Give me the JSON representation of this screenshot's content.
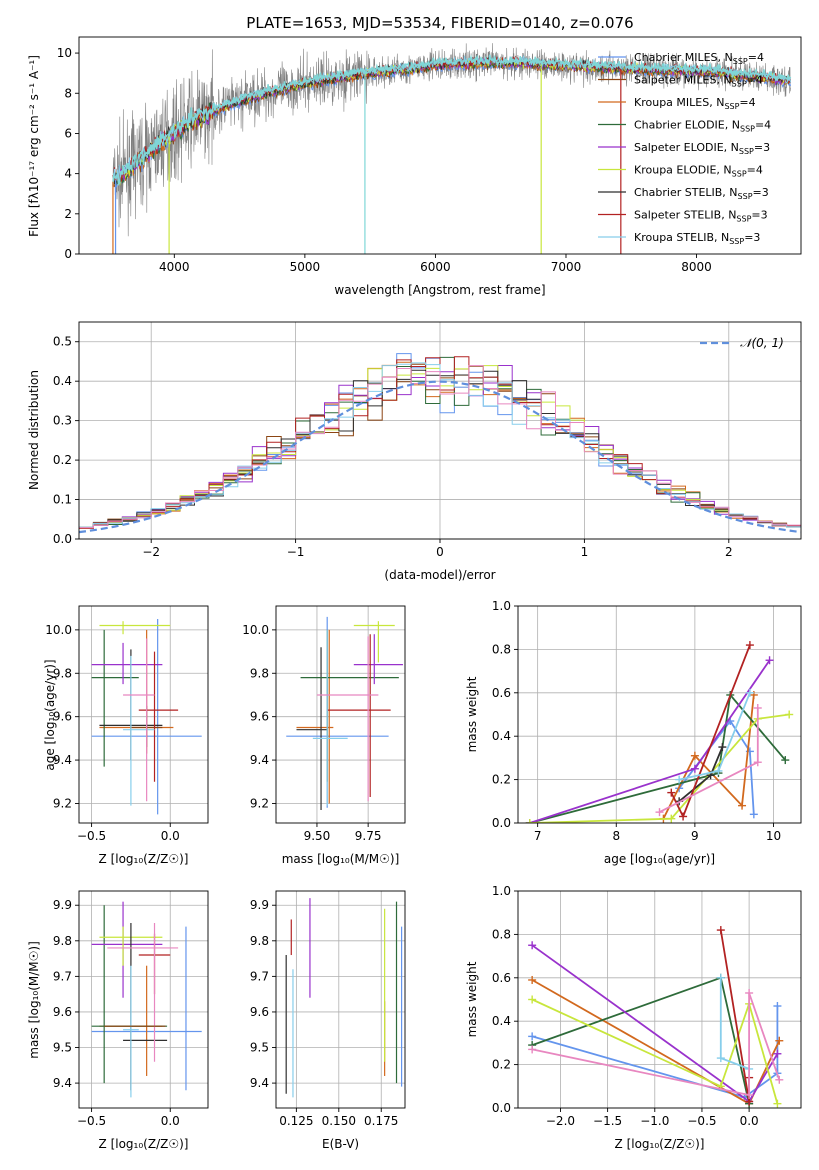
{
  "colors": {
    "chabrier_miles": "#6495ed",
    "salpeter_miles": "#8b4513",
    "kroupa_miles": "#d2691e",
    "chabrier_elodie": "#2e6b3a",
    "salpeter_elodie": "#9932cc",
    "kroupa_elodie": "#c8e63c",
    "chabrier_stelib": "#2f2f2f",
    "salpeter_stelib": "#b22222",
    "kroupa_stelib": "#87ceeb",
    "spectrum_data": "#808080",
    "fit_main": "#7fd6d6",
    "pink": "#e887c0",
    "gauss": "#5f8fdc"
  },
  "chart_data": [
    {
      "id": "spectrum",
      "type": "line",
      "title": "PLATE=1653, MJD=53534, FIBERID=0140, z=0.076",
      "xlabel": "wavelength [Angstrom, rest frame]",
      "ylabel": "Flux [fλ10⁻¹⁷ erg cm⁻² s⁻¹ A⁻¹]",
      "xlim": [
        3270,
        8800
      ],
      "ylim": [
        0,
        10.8
      ],
      "xticks": [
        "4000",
        "5000",
        "6000",
        "7000",
        "8000"
      ],
      "yticks": [
        "0",
        "2",
        "4",
        "6",
        "8",
        "10"
      ],
      "legend_position": "right",
      "legend": [
        {
          "main": "Chabrier MILES, N",
          "sub": "SSP",
          "tail": "=4",
          "color": "#6495ed"
        },
        {
          "main": "Salpeter MILES, N",
          "sub": "SSP",
          "tail": "=4",
          "color": "#8b4513"
        },
        {
          "main": "Kroupa MILES, N",
          "sub": "SSP",
          "tail": "=4",
          "color": "#d2691e"
        },
        {
          "main": "Chabrier ELODIE, N",
          "sub": "SSP",
          "tail": "=4",
          "color": "#2e6b3a"
        },
        {
          "main": "Salpeter ELODIE, N",
          "sub": "SSP",
          "tail": "=3",
          "color": "#9932cc"
        },
        {
          "main": "Kroupa ELODIE, N",
          "sub": "SSP",
          "tail": "=4",
          "color": "#c8e63c"
        },
        {
          "main": "Chabrier STELIB, N",
          "sub": "SSP",
          "tail": "=3",
          "color": "#2f2f2f"
        },
        {
          "main": "Salpeter STELIB, N",
          "sub": "SSP",
          "tail": "=3",
          "color": "#b22222"
        },
        {
          "main": "Kroupa STELIB, N",
          "sub": "SSP",
          "tail": "=3",
          "color": "#87ceeb"
        }
      ],
      "continuum": {
        "x": [
          3530,
          3600,
          3700,
          3800,
          3900,
          4000,
          4100,
          4200,
          4300,
          4500,
          4700,
          4900,
          5100,
          5300,
          5500,
          5800,
          6000,
          6300,
          6600,
          6900,
          7200,
          7500,
          7800,
          8100,
          8300,
          8500,
          8700
        ],
        "y": [
          3.6,
          3.9,
          4.5,
          5.0,
          5.6,
          6.0,
          6.5,
          6.8,
          7.1,
          7.6,
          8.0,
          8.3,
          8.6,
          8.8,
          9.0,
          9.2,
          9.4,
          9.5,
          9.5,
          9.4,
          9.3,
          9.2,
          9.1,
          9.1,
          8.9,
          8.8,
          8.6
        ]
      }
    },
    {
      "id": "residuals",
      "type": "step",
      "xlabel": "(data-model)/error",
      "ylabel": "Normed distribution",
      "xlim": [
        -2.5,
        2.5
      ],
      "ylim": [
        0,
        0.55
      ],
      "xticks": [
        "−2",
        "−1",
        "0",
        "1",
        "2"
      ],
      "yticks": [
        "0.0",
        "0.1",
        "0.2",
        "0.3",
        "0.4",
        "0.5"
      ],
      "legend": {
        "label": "𝒩(0, 1)",
        "position": "upper right"
      },
      "bin_edges_from": -2.5,
      "bin_width": 0.1
    },
    {
      "id": "age-vs-Z",
      "type": "errorbar",
      "xlabel": "Z [log₁₀(Z/Z☉)]",
      "ylabel": "age  [log₁₀(age/yr)]",
      "xlim": [
        -0.58,
        0.24
      ],
      "ylim": [
        9.11,
        10.11
      ],
      "xticks": [
        "−0.5",
        "0.0"
      ],
      "yticks": [
        "9.2",
        "9.4",
        "9.6",
        "9.8",
        "10.0"
      ],
      "points": [
        {
          "x": -0.08,
          "xlo": -0.5,
          "xhi": 0.2,
          "y": 9.51,
          "ylo": 9.15,
          "yhi": 10.05,
          "color": "#6495ed"
        },
        {
          "x": -0.15,
          "xlo": -0.45,
          "xhi": 0.02,
          "y": 9.55,
          "ylo": 9.43,
          "yhi": 10.0,
          "color": "#d2691e"
        },
        {
          "x": -0.15,
          "xlo": -0.25,
          "xhi": -0.05,
          "y": 9.55,
          "ylo": 9.46,
          "yhi": 9.65,
          "color": "#8b4513"
        },
        {
          "x": -0.42,
          "xlo": -0.5,
          "xhi": -0.2,
          "y": 9.78,
          "ylo": 9.37,
          "yhi": 10.0,
          "color": "#2e6b3a"
        },
        {
          "x": -0.3,
          "xlo": -0.5,
          "xhi": -0.05,
          "y": 9.84,
          "ylo": 9.75,
          "yhi": 9.94,
          "color": "#9932cc"
        },
        {
          "x": -0.3,
          "xlo": -0.45,
          "xhi": 0.0,
          "y": 10.02,
          "ylo": 9.98,
          "yhi": 10.04,
          "color": "#c8e63c"
        },
        {
          "x": -0.25,
          "xlo": -0.45,
          "xhi": -0.05,
          "y": 9.56,
          "ylo": 9.4,
          "yhi": 9.91,
          "color": "#2f2f2f"
        },
        {
          "x": -0.1,
          "xlo": -0.2,
          "xhi": 0.05,
          "y": 9.63,
          "ylo": 9.3,
          "yhi": 9.9,
          "color": "#b22222"
        },
        {
          "x": -0.25,
          "xlo": -0.3,
          "xhi": -0.1,
          "y": 9.54,
          "ylo": 9.19,
          "yhi": 9.88,
          "color": "#87ceeb"
        },
        {
          "x": -0.15,
          "xlo": -0.3,
          "xhi": -0.1,
          "y": 9.7,
          "ylo": 9.21,
          "yhi": 9.96,
          "color": "#e887c0"
        }
      ]
    },
    {
      "id": "age-vs-mass",
      "type": "errorbar",
      "xlabel": "mass [log₁₀(M/M☉)]",
      "ylabel": "",
      "xlim": [
        9.3,
        9.93
      ],
      "ylim": [
        9.11,
        10.11
      ],
      "xticks": [
        "9.50",
        "9.75"
      ],
      "yticks": [
        "9.2",
        "9.4",
        "9.6",
        "9.8",
        "10.0"
      ],
      "points": [
        {
          "x": 9.55,
          "xlo": 9.35,
          "xhi": 9.85,
          "y": 9.51,
          "ylo": 9.18,
          "yhi": 10.06,
          "color": "#6495ed"
        },
        {
          "x": 9.56,
          "xlo": 9.4,
          "xhi": 9.58,
          "y": 9.55,
          "ylo": 9.2,
          "yhi": 10.0,
          "color": "#d2691e"
        },
        {
          "x": 9.52,
          "xlo": 9.4,
          "xhi": 9.55,
          "y": 9.54,
          "ylo": 9.17,
          "yhi": 9.92,
          "color": "#2f2f2f"
        },
        {
          "x": 9.55,
          "xlo": 9.42,
          "xhi": 9.9,
          "y": 9.78,
          "ylo": 9.3,
          "yhi": 10.0,
          "color": "#2e6b3a"
        },
        {
          "x": 9.78,
          "xlo": 9.68,
          "xhi": 9.92,
          "y": 9.84,
          "ylo": 9.75,
          "yhi": 9.98,
          "color": "#9932cc"
        },
        {
          "x": 9.8,
          "xlo": 9.68,
          "xhi": 9.88,
          "y": 10.02,
          "ylo": 9.85,
          "yhi": 10.04,
          "color": "#c8e63c"
        },
        {
          "x": 9.76,
          "xlo": 9.55,
          "xhi": 9.86,
          "y": 9.63,
          "ylo": 9.23,
          "yhi": 9.98,
          "color": "#b22222"
        },
        {
          "x": 9.55,
          "xlo": 9.48,
          "xhi": 9.65,
          "y": 9.5,
          "ylo": 9.19,
          "yhi": 10.0,
          "color": "#87ceeb"
        },
        {
          "x": 9.75,
          "xlo": 9.5,
          "xhi": 9.8,
          "y": 9.7,
          "ylo": 9.21,
          "yhi": 9.97,
          "color": "#e887c0"
        }
      ]
    },
    {
      "id": "weight-vs-age",
      "type": "line",
      "xlabel": "age  [log₁₀(age/yr)]",
      "ylabel": "mass weight",
      "xlim": [
        6.75,
        10.35
      ],
      "ylim": [
        0,
        1
      ],
      "xticks": [
        "7",
        "8",
        "9",
        "10"
      ],
      "yticks": [
        "0.0",
        "0.2",
        "0.4",
        "0.6",
        "0.8",
        "1.0"
      ],
      "series": [
        {
          "color": "#6495ed",
          "points": [
            [
              8.8,
              0.16
            ],
            [
              9.45,
              0.47
            ],
            [
              9.7,
              0.33
            ],
            [
              9.75,
              0.04
            ]
          ]
        },
        {
          "color": "#d2691e",
          "points": [
            [
              8.6,
              0.02
            ],
            [
              9.0,
              0.31
            ],
            [
              9.6,
              0.08
            ],
            [
              9.75,
              0.59
            ]
          ]
        },
        {
          "color": "#2e6b3a",
          "points": [
            [
              6.9,
              0.0
            ],
            [
              9.3,
              0.23
            ],
            [
              9.45,
              0.59
            ],
            [
              10.15,
              0.29
            ]
          ]
        },
        {
          "color": "#9932cc",
          "points": [
            [
              6.9,
              0.0
            ],
            [
              9.0,
              0.25
            ],
            [
              9.95,
              0.75
            ]
          ]
        },
        {
          "color": "#c8e63c",
          "points": [
            [
              6.9,
              0.0
            ],
            [
              8.7,
              0.02
            ],
            [
              9.8,
              0.48
            ],
            [
              10.2,
              0.5
            ]
          ]
        },
        {
          "color": "#2f2f2f",
          "points": [
            [
              8.8,
              0.1
            ],
            [
              9.2,
              0.22
            ],
            [
              9.35,
              0.35
            ]
          ]
        },
        {
          "color": "#b22222",
          "points": [
            [
              8.7,
              0.14
            ],
            [
              8.85,
              0.03
            ],
            [
              9.7,
              0.82
            ]
          ]
        },
        {
          "color": "#87ceeb",
          "points": [
            [
              8.8,
              0.2
            ],
            [
              9.3,
              0.24
            ],
            [
              9.7,
              0.6
            ]
          ]
        },
        {
          "color": "#e887c0",
          "points": [
            [
              8.55,
              0.05
            ],
            [
              9.8,
              0.28
            ],
            [
              9.8,
              0.53
            ]
          ]
        }
      ]
    },
    {
      "id": "mass-vs-Z",
      "type": "errorbar",
      "xlabel": "Z [log₁₀(Z/Z☉)]",
      "ylabel": "mass [log₁₀(M/M☉)]",
      "xlim": [
        -0.58,
        0.24
      ],
      "ylim": [
        9.33,
        9.94
      ],
      "xticks": [
        "−0.5",
        "0.0"
      ],
      "yticks": [
        "9.4",
        "9.5",
        "9.6",
        "9.7",
        "9.8",
        "9.9"
      ],
      "points": [
        {
          "x": 0.1,
          "xlo": -0.5,
          "xhi": 0.2,
          "y": 9.545,
          "ylo": 9.38,
          "yhi": 9.84,
          "color": "#6495ed"
        },
        {
          "x": -0.15,
          "xlo": -0.45,
          "xhi": -0.05,
          "y": 9.56,
          "ylo": 9.42,
          "yhi": 9.73,
          "color": "#d2691e"
        },
        {
          "x": -0.42,
          "xlo": -0.5,
          "xhi": -0.02,
          "y": 9.56,
          "ylo": 9.4,
          "yhi": 9.9,
          "color": "#2e6b3a"
        },
        {
          "x": -0.3,
          "xlo": -0.5,
          "xhi": -0.05,
          "y": 9.79,
          "ylo": 9.64,
          "yhi": 9.91,
          "color": "#9932cc"
        },
        {
          "x": -0.3,
          "xlo": -0.45,
          "xhi": -0.05,
          "y": 9.81,
          "ylo": 9.73,
          "yhi": 9.84,
          "color": "#c8e63c"
        },
        {
          "x": -0.25,
          "xlo": -0.3,
          "xhi": -0.02,
          "y": 9.52,
          "ylo": 9.38,
          "yhi": 9.85,
          "color": "#2f2f2f"
        },
        {
          "x": -0.1,
          "xlo": -0.2,
          "xhi": 0.0,
          "y": 9.76,
          "ylo": 9.65,
          "yhi": 9.82,
          "color": "#b22222"
        },
        {
          "x": -0.25,
          "xlo": -0.3,
          "xhi": -0.2,
          "y": 9.55,
          "ylo": 9.36,
          "yhi": 9.73,
          "color": "#87ceeb"
        },
        {
          "x": -0.1,
          "xlo": -0.4,
          "xhi": 0.05,
          "y": 9.78,
          "ylo": 9.46,
          "yhi": 9.85,
          "color": "#e887c0"
        },
        {
          "x": -0.3,
          "xlo": -0.42,
          "xhi": -0.03,
          "y": 9.56,
          "ylo": 9.56,
          "yhi": 9.56,
          "color": "#8b4513"
        }
      ]
    },
    {
      "id": "mass-vs-ebv",
      "type": "errorbar",
      "xlabel": "E(B-V)",
      "ylabel": "",
      "xlim": [
        0.113,
        0.189
      ],
      "ylim": [
        9.33,
        9.94
      ],
      "xticks": [
        "0.125",
        "0.150",
        "0.175"
      ],
      "yticks": [
        "9.4",
        "9.5",
        "9.6",
        "9.7",
        "9.8",
        "9.9"
      ],
      "points": [
        {
          "x": 0.187,
          "y": 9.55,
          "ylo": 9.39,
          "yhi": 9.84,
          "color": "#6495ed"
        },
        {
          "x": 0.177,
          "y": 9.52,
          "ylo": 9.42,
          "yhi": 9.63,
          "color": "#d2691e"
        },
        {
          "x": 0.184,
          "y": 9.7,
          "ylo": 9.4,
          "yhi": 9.91,
          "color": "#2e6b3a"
        },
        {
          "x": 0.133,
          "y": 9.78,
          "ylo": 9.64,
          "yhi": 9.92,
          "color": "#9932cc"
        },
        {
          "x": 0.177,
          "y": 9.7,
          "ylo": 9.46,
          "yhi": 9.89,
          "color": "#c8e63c"
        },
        {
          "x": 0.119,
          "y": 9.56,
          "ylo": 9.37,
          "yhi": 9.76,
          "color": "#2f2f2f"
        },
        {
          "x": 0.122,
          "y": 9.8,
          "ylo": 9.76,
          "yhi": 9.86,
          "color": "#b22222"
        },
        {
          "x": 0.123,
          "y": 9.55,
          "ylo": 9.36,
          "yhi": 9.72,
          "color": "#87ceeb"
        }
      ]
    },
    {
      "id": "weight-vs-Z",
      "type": "line",
      "xlabel": "Z [log₁₀(Z/Z☉)]",
      "ylabel": "mass weight",
      "xlim": [
        -2.45,
        0.55
      ],
      "ylim": [
        0,
        1
      ],
      "xticks": [
        "−2.0",
        "−1.5",
        "−1.0",
        "−0.5",
        "0.0"
      ],
      "yticks": [
        "0.0",
        "0.2",
        "0.4",
        "0.6",
        "0.8",
        "1.0"
      ],
      "series": [
        {
          "color": "#6495ed",
          "points": [
            [
              -2.3,
              0.33
            ],
            [
              -0.05,
              0.05
            ],
            [
              0.3,
              0.16
            ],
            [
              0.3,
              0.47
            ]
          ]
        },
        {
          "color": "#d2691e",
          "points": [
            [
              -2.3,
              0.59
            ],
            [
              0.0,
              0.02
            ],
            [
              0.32,
              0.31
            ]
          ]
        },
        {
          "color": "#2e6b3a",
          "points": [
            [
              -2.3,
              0.29
            ],
            [
              -0.3,
              0.6
            ],
            [
              0.0,
              0.02
            ]
          ]
        },
        {
          "color": "#9932cc",
          "points": [
            [
              -2.3,
              0.75
            ],
            [
              0.0,
              0.03
            ],
            [
              0.3,
              0.25
            ]
          ]
        },
        {
          "color": "#c8e63c",
          "points": [
            [
              -2.3,
              0.5
            ],
            [
              -0.3,
              0.1
            ],
            [
              0.0,
              0.48
            ],
            [
              0.3,
              0.02
            ]
          ]
        },
        {
          "color": "#b22222",
          "points": [
            [
              -0.3,
              0.82
            ],
            [
              0.0,
              0.03
            ],
            [
              0.0,
              0.14
            ]
          ]
        },
        {
          "color": "#87ceeb",
          "points": [
            [
              -0.3,
              0.6
            ],
            [
              -0.3,
              0.23
            ],
            [
              0.0,
              0.18
            ]
          ]
        },
        {
          "color": "#e887c0",
          "points": [
            [
              -2.3,
              0.27
            ],
            [
              0.0,
              0.06
            ],
            [
              0.0,
              0.53
            ],
            [
              0.32,
              0.13
            ]
          ]
        }
      ]
    }
  ]
}
